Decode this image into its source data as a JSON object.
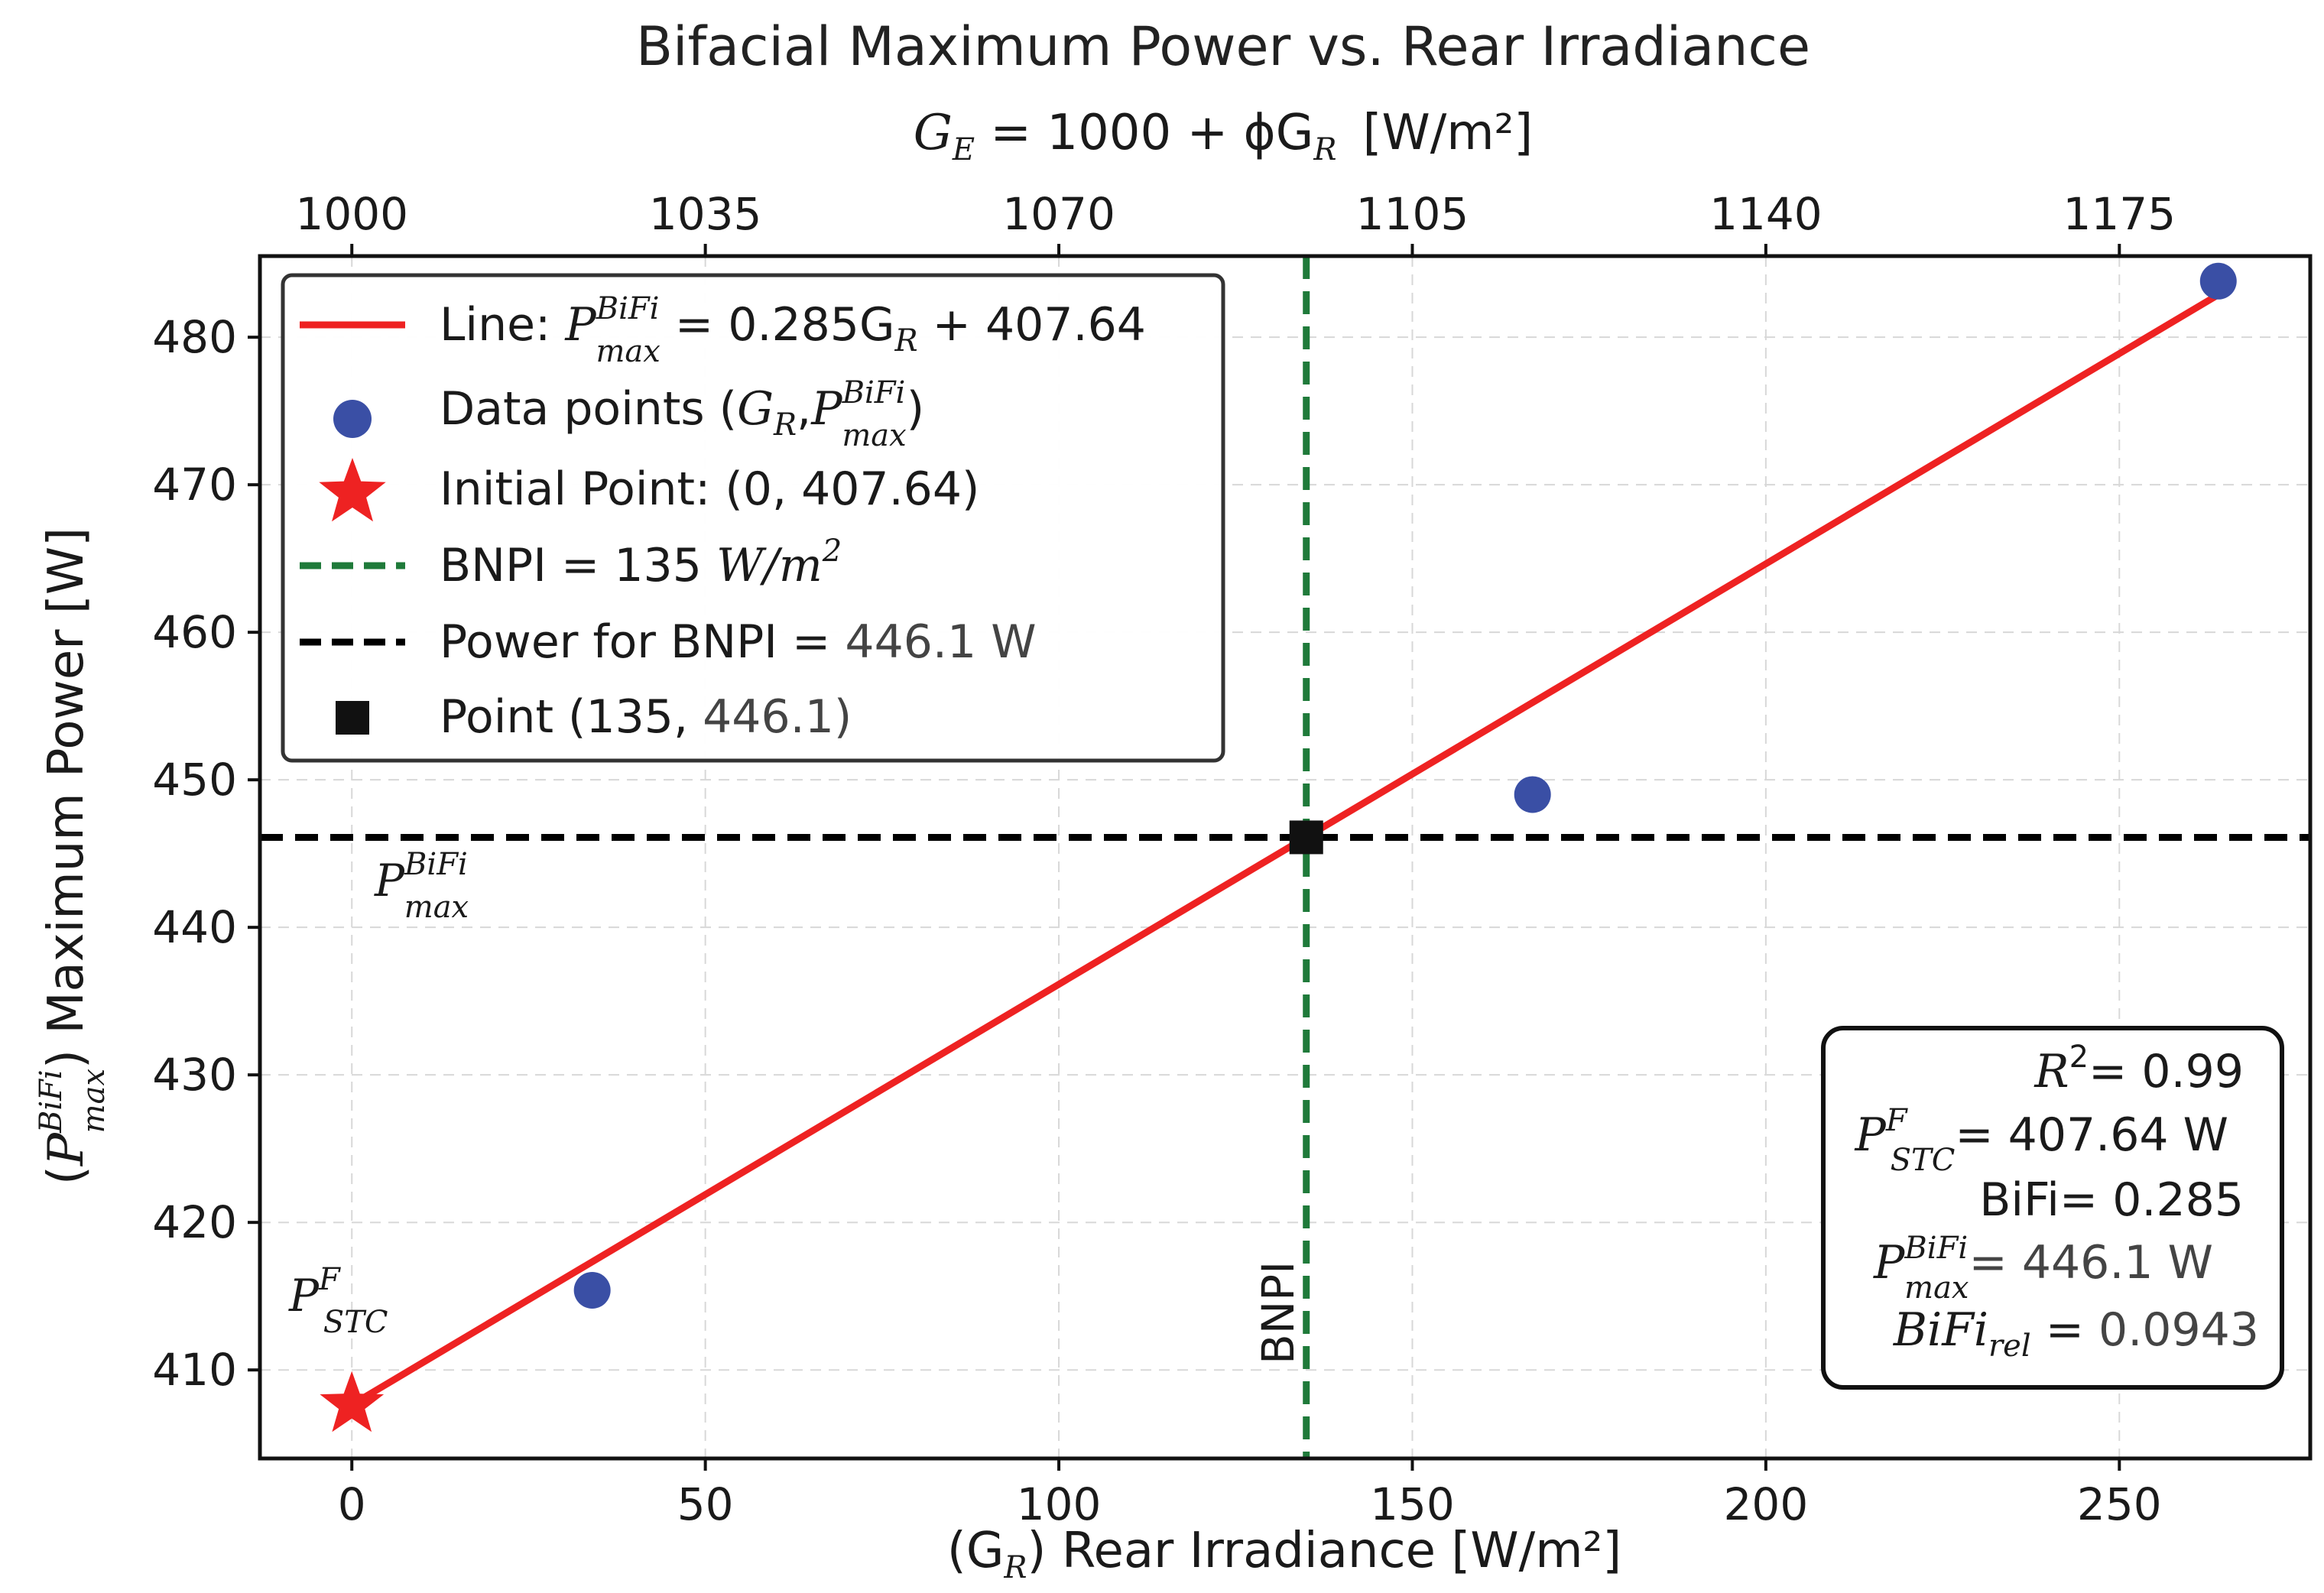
{
  "chart_data": {
    "type": "scatter",
    "title": "Bifacial Maximum Power vs. Rear Irradiance",
    "xlabel": "(G_R) Rear Irradiance [W/m²]",
    "ylabel": "(P_max^BiFi) Maximum Power [W]",
    "top_xlabel": "G_E = 1000 + φG_R  [W/m²]",
    "xlim": [
      -13,
      277
    ],
    "ylim": [
      404,
      485.5
    ],
    "xticks": [
      0,
      50,
      100,
      150,
      200,
      250
    ],
    "yticks": [
      410,
      420,
      430,
      440,
      450,
      460,
      470,
      480
    ],
    "top_ticks": [
      1000,
      1035,
      1070,
      1105,
      1140,
      1175
    ],
    "top_tick_positions": [
      0,
      50,
      100,
      150,
      200,
      250
    ],
    "grid": true,
    "legend_position": "upper-left",
    "fit_line": {
      "name": "Line: P_max^BiFi = 0.285G_R + 407.64",
      "slope": 0.285,
      "intercept": 407.64,
      "x_range": [
        0,
        264
      ],
      "color": "#ee2222"
    },
    "data_points": {
      "name": "Data points (G_R, P_max^BiFi)",
      "x": [
        34,
        167,
        264
      ],
      "y": [
        415.4,
        449.0,
        483.8
      ],
      "color": "#3a4fa5"
    },
    "initial_point": {
      "name": "Initial Point: (0, 407.64)",
      "x": 0,
      "y": 407.64,
      "color": "#ee2222"
    },
    "bnpi_line": {
      "name": "BNPI = 135 W/m²",
      "x": 135,
      "color": "#1f7a3a"
    },
    "power_line": {
      "name": "Power for BNPI = 446.1 W",
      "y": 446.1,
      "color": "#000000"
    },
    "bnpi_point": {
      "name": "Point (135, 446.1)",
      "x": 135,
      "y": 446.1
    },
    "annotations": {
      "pmax_label": "P_max^BiFi",
      "pstc_label": "P_STC^F",
      "bnpi_label": "BNPI"
    },
    "stats_box": {
      "r2": "R²= 0.99",
      "pstc": "P_STC^F= 407.64 W",
      "bifi": "BiFi= 0.285",
      "pmax": "P_max^BiFi= 446.1 W",
      "bifi_rel": "BiFi_rel = 0.0943"
    }
  },
  "text": {
    "title": "Bifacial Maximum Power vs. Rear Irradiance",
    "top_axis_prefix": "G",
    "top_axis_sub": "E",
    "top_axis_mid": " = 1000 + ϕG",
    "top_axis_sub2": "R",
    "top_axis_units": "[W/m²]",
    "xlabel_open": "(G",
    "xlabel_sub": "R",
    "xlabel_rest": ") Rear Irradiance [W/m²]",
    "ylabel_rest": ") Maximum Power [W]",
    "legend_line_prefix": "Line: ",
    "legend_line_suffix": " = 0.285G",
    "legend_line_tail": " + 407.64",
    "legend_data_prefix": "Data points (",
    "legend_data_close": ")",
    "legend_initial": "Initial Point: (0, 407.64)",
    "legend_bnpi_prefix": "BNPI = 135 ",
    "legend_bnpi_unit": "W/m",
    "legend_bnpi_exp": "2",
    "legend_power_prefix": "Power for BNPI = ",
    "legend_power_value": "446.1 W",
    "legend_point_prefix": "Point (135, ",
    "legend_point_value": "446.1",
    "legend_point_close": ")",
    "sym_P": "P",
    "sym_G": "G",
    "sym_R": "R",
    "sup_bifi": "BiFi",
    "sub_max": "max",
    "sup_F": "F",
    "sub_stc": "STC",
    "comma": ",",
    "bnpi": "BNPI",
    "stats_r": "R",
    "stats_r_exp": "2",
    "stats_r_val": "= 0.99",
    "stats_pstc_val": "= 407.64 W",
    "stats_bifi": "BiFi= 0.285",
    "stats_pmax_val": "= 446.1 W",
    "stats_bifirel_main": "BiFi",
    "stats_bifirel_sub": "rel",
    "stats_bifirel_eq": " = ",
    "stats_bifirel_val": "0.0943"
  }
}
